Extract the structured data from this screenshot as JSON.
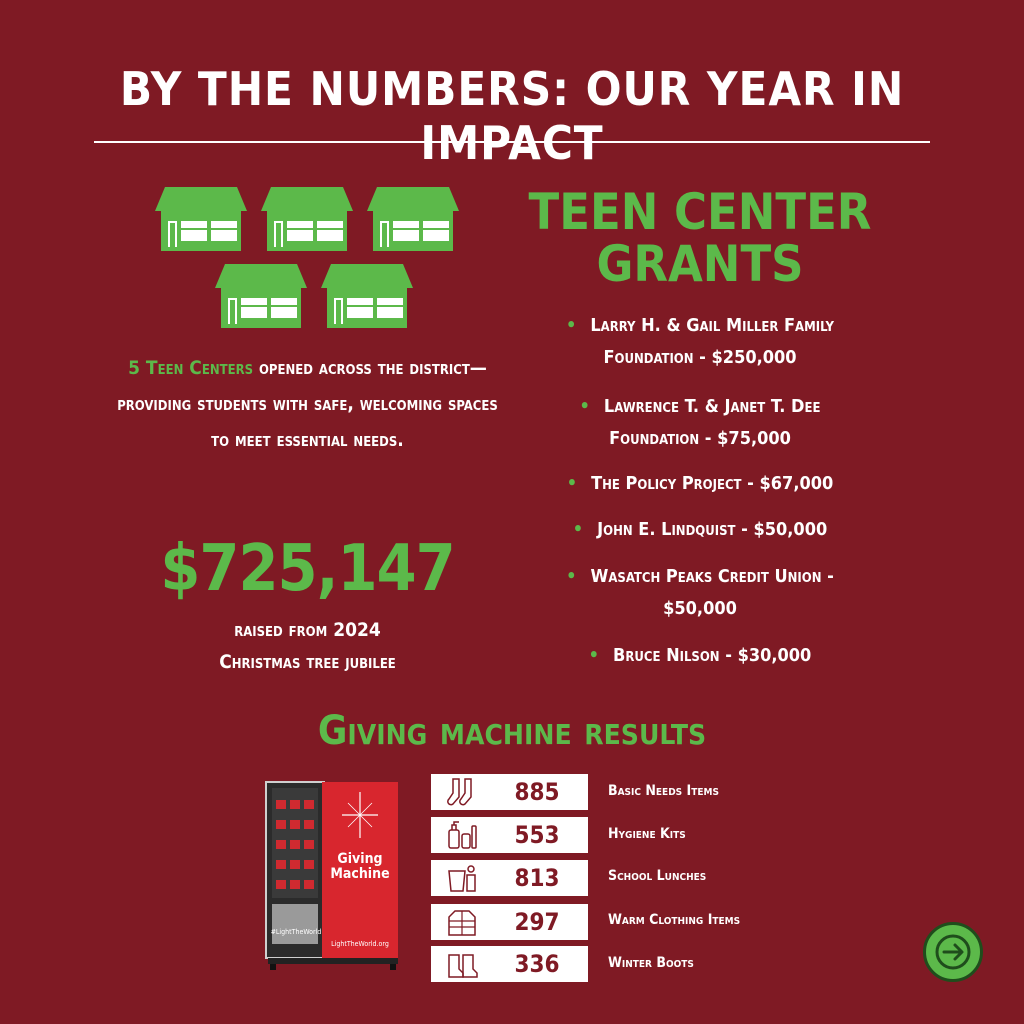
{
  "header": {
    "title": "BY THE NUMBERS: OUR YEAR IN IMPACT"
  },
  "teen_centers": {
    "highlight": "5 Teen Centers",
    "text": " opened across the district—providing students with safe, welcoming spaces to meet essential needs."
  },
  "fundraising": {
    "amount": "$725,147",
    "line1": "raised from 2024",
    "line2": "Christmas tree jubilee"
  },
  "grants": {
    "title_line1": "TEEN CENTER",
    "title_line2": "GRANTS",
    "items": [
      {
        "line1": "Larry H. & Gail Miller Family",
        "line2": "Foundation - $250,000"
      },
      {
        "line1": "Lawrence T. & Janet T. Dee",
        "line2": "Foundation - $75,000"
      },
      {
        "line1": "The Policy Project - $67,000",
        "line2": ""
      },
      {
        "line1": "John E. Lindquist - $50,000",
        "line2": ""
      },
      {
        "line1": "Wasatch Peaks Credit Union -",
        "line2": "$50,000"
      },
      {
        "line1": "Bruce Nilson - $30,000",
        "line2": ""
      }
    ]
  },
  "giving": {
    "title": "Giving machine results",
    "machine": {
      "name_line1": "Giving",
      "name_line2": "Machine",
      "hashtag": "#LightTheWorld",
      "site": "LightTheWorld.org"
    },
    "results": [
      {
        "icon": "socks-icon",
        "value": "885",
        "label": "Basic Needs Items"
      },
      {
        "icon": "hygiene-kit-icon",
        "value": "553",
        "label": "Hygiene Kits"
      },
      {
        "icon": "lunch-bag-icon",
        "value": "813",
        "label": "School Lunches"
      },
      {
        "icon": "jacket-icon",
        "value": "297",
        "label": "Warm Clothing Items"
      },
      {
        "icon": "boots-icon",
        "value": "336",
        "label": "Winter Boots"
      }
    ]
  },
  "colors": {
    "background": "#7f1a24",
    "accent": "#5cb94a",
    "text": "#ffffff"
  },
  "nav": {
    "icon": "arrow-right-icon"
  }
}
